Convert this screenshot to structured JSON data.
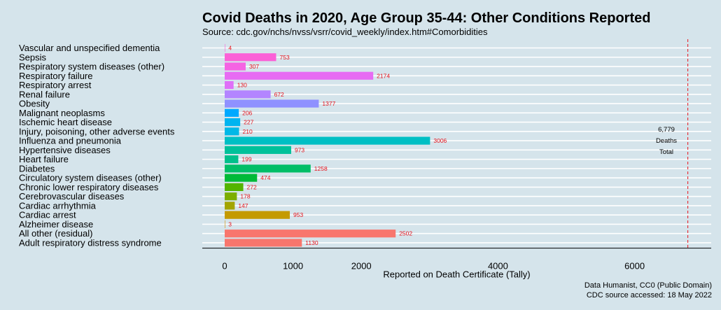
{
  "chart_data": {
    "type": "bar",
    "orientation": "horizontal",
    "title": "Covid Deaths in 2020, Age Group 35-44: Other Conditions Reported",
    "subtitle": "Source: cdc.gov/nchs/nvss/vsrr/covid_weekly/index.htm#Comorbidities",
    "xlabel": "Reported on Death Certificate (Tally)",
    "ylabel": "",
    "xlim": [
      0,
      7000
    ],
    "xticks": [
      0,
      1000,
      2000,
      4000,
      6000
    ],
    "grid": true,
    "categories": [
      "Vascular and unspecified dementia",
      "Sepsis",
      "Respiratory system diseases (other)",
      "Respiratory failure",
      "Respiratory arrest",
      "Renal failure",
      "Obesity",
      "Malignant neoplasms",
      "Ischemic heart disease",
      "Injury, poisoning, other adverse events",
      "Influenza and pneumonia",
      "Hypertensive diseases",
      "Heart failure",
      "Diabetes",
      "Circulatory system diseases (other)",
      "Chronic lower respiratory diseases",
      "Cerebrovascular diseases",
      "Cardiac arrhythmia",
      "Cardiac arrest",
      "Alzheimer disease",
      "All other (residual)",
      "Adult respiratory distress syndrome"
    ],
    "values": [
      4,
      753,
      307,
      2174,
      130,
      672,
      1377,
      206,
      227,
      210,
      3006,
      973,
      199,
      1258,
      474,
      272,
      178,
      147,
      953,
      3,
      2502,
      1130
    ],
    "colors": [
      "#fb61d7",
      "#fb61d7",
      "#f564e3",
      "#e76bf3",
      "#df70f8",
      "#b385ff",
      "#8f91ff",
      "#00a9ff",
      "#00b4f0",
      "#00b8e7",
      "#00bfc4",
      "#00c19a",
      "#00c08b",
      "#00be67",
      "#00ba38",
      "#53b400",
      "#7cae00",
      "#a3a500",
      "#c49a00",
      "#d89000",
      "#f8766d",
      "#f8766d"
    ],
    "value_label_color": "#e8141c",
    "reference_line": {
      "value": 6779,
      "color": "#e8141c",
      "style": "dashed"
    },
    "annotation": [
      "6,779",
      "Deaths",
      "Total"
    ],
    "caption": [
      "Data Humanist, CC0 (Public Domain)",
      "CDC source accessed: 18 May 2022"
    ]
  }
}
